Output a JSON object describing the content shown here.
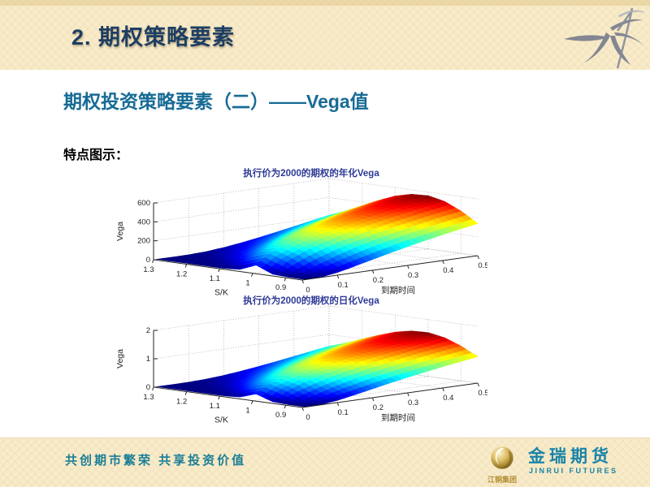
{
  "slide": {
    "header": {
      "title": "2. 期权策略要素"
    },
    "subtitle": "期权投资策略要素（二）——Vega值",
    "section_label": "特点图示：",
    "footer": {
      "slogan": "共创期市繁荣  共享投资价值",
      "logo_group": "江铜集团",
      "logo_brand_cn": "金瑞期货",
      "logo_brand_en": "JINRUI FUTURES"
    },
    "colors": {
      "banner_bg": "#f8ebc9",
      "title_navy": "#1d3e63",
      "subtitle_teal": "#176b95",
      "slogan_teal": "#1a7e96",
      "chart_title_blue": "#2e3a96",
      "logo_gold": "#b08d2f"
    }
  },
  "chart_data": [
    {
      "type": "surface3d",
      "title": "执行价为2000的期权的年化Vega",
      "xlabel": "S/K",
      "ylabel": "到期时间",
      "zlabel": "Vega",
      "x_ticks": [
        1.3,
        1.2,
        1.1,
        1,
        0.9
      ],
      "y_ticks": [
        0,
        0.1,
        0.2,
        0.3,
        0.4,
        0.5
      ],
      "z_ticks": [
        0,
        200,
        400,
        600
      ],
      "x_range": [
        0.85,
        1.3
      ],
      "y_range": [
        0,
        0.5
      ],
      "z_range": [
        0,
        600
      ],
      "colormap": "jet",
      "grid": true,
      "value_divisor": 1,
      "s_values": [
        0.85,
        0.9,
        0.95,
        1,
        1.05,
        1.1,
        1.15,
        1.2,
        1.25,
        1.3
      ],
      "t_values": [
        0.01,
        0.05,
        0.1,
        0.15,
        0.2,
        0.25,
        0.3,
        0.35,
        0.4,
        0.45,
        0.5
      ],
      "values": [
        [
          0,
          2,
          28,
          70,
          114,
          158,
          199,
          237,
          273,
          307,
          340
        ],
        [
          0,
          29,
          98,
          162,
          217,
          265,
          308,
          346,
          382,
          415,
          446
        ],
        [
          9,
          114,
          199,
          261,
          312,
          357,
          396,
          432,
          465,
          496,
          525
        ],
        [
          80,
          178,
          252,
          309,
          356,
          398,
          436,
          471,
          503,
          533,
          562
        ],
        [
          12,
          125,
          213,
          279,
          332,
          378,
          419,
          457,
          491,
          524,
          554
        ],
        [
          0,
          44,
          128,
          199,
          260,
          312,
          359,
          401,
          440,
          476,
          510
        ],
        [
          0,
          8,
          57,
          117,
          175,
          229,
          278,
          323,
          365,
          404,
          441
        ],
        [
          0,
          2,
          19,
          57,
          103,
          151,
          197,
          241,
          283,
          324,
          362
        ],
        [
          0,
          0,
          5,
          24,
          54,
          91,
          129,
          169,
          208,
          246,
          283
        ],
        [
          0,
          0,
          1,
          9,
          26,
          50,
          79,
          111,
          145,
          179,
          213
        ]
      ]
    },
    {
      "type": "surface3d",
      "title": "执行价为2000的期权的日化Vega",
      "xlabel": "S/K",
      "ylabel": "到期时间",
      "zlabel": "Vega",
      "x_ticks": [
        1.3,
        1.2,
        1.1,
        1,
        0.9
      ],
      "y_ticks": [
        0,
        0.1,
        0.2,
        0.3,
        0.4,
        0.5
      ],
      "z_ticks": [
        0,
        1,
        2
      ],
      "x_range": [
        0.85,
        1.3
      ],
      "y_range": [
        0,
        0.5
      ],
      "z_range": [
        0,
        2
      ],
      "colormap": "jet",
      "grid": true,
      "value_divisor": 365,
      "s_values": [
        0.85,
        0.9,
        0.95,
        1,
        1.05,
        1.1,
        1.15,
        1.2,
        1.25,
        1.3
      ],
      "t_values": [
        0.01,
        0.05,
        0.1,
        0.15,
        0.2,
        0.25,
        0.3,
        0.35,
        0.4,
        0.45,
        0.5
      ],
      "values": [
        [
          0,
          2,
          28,
          70,
          114,
          158,
          199,
          237,
          273,
          307,
          340
        ],
        [
          0,
          29,
          98,
          162,
          217,
          265,
          308,
          346,
          382,
          415,
          446
        ],
        [
          9,
          114,
          199,
          261,
          312,
          357,
          396,
          432,
          465,
          496,
          525
        ],
        [
          80,
          178,
          252,
          309,
          356,
          398,
          436,
          471,
          503,
          533,
          562
        ],
        [
          12,
          125,
          213,
          279,
          332,
          378,
          419,
          457,
          491,
          524,
          554
        ],
        [
          0,
          44,
          128,
          199,
          260,
          312,
          359,
          401,
          440,
          476,
          510
        ],
        [
          0,
          8,
          57,
          117,
          175,
          229,
          278,
          323,
          365,
          404,
          441
        ],
        [
          0,
          2,
          19,
          57,
          103,
          151,
          197,
          241,
          283,
          324,
          362
        ],
        [
          0,
          0,
          5,
          24,
          54,
          91,
          129,
          169,
          208,
          246,
          283
        ],
        [
          0,
          0,
          1,
          9,
          26,
          50,
          79,
          111,
          145,
          179,
          213
        ]
      ]
    }
  ]
}
